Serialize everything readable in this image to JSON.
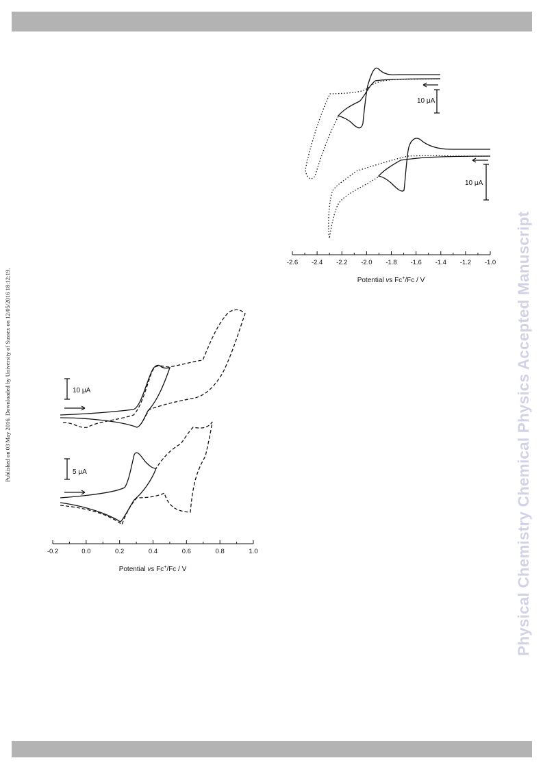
{
  "page": {
    "side_note": "Published on 03 May 2016. Downloaded by University of Sussex on 12/05/2016 18:12:19.",
    "watermark": "Physical Chemistry Chemical Physics Accepted Manuscript"
  },
  "chart_data": [
    {
      "type": "line",
      "title": "",
      "xlabel": "Potential vs Fc+/Fc / V",
      "xlabel_parts": [
        "Potential ",
        "vs",
        " Fc",
        "+",
        "/Fc / V"
      ],
      "ylabel": "",
      "xlim": [
        -2.6,
        -1.0
      ],
      "xticks": [
        "-2.6",
        "-2.4",
        "-2.2",
        "-2.0",
        "-1.8",
        "-1.6",
        "-1.4",
        "-1.2",
        "-1.0"
      ],
      "scale_bars": [
        "10 μA",
        "10 μA"
      ],
      "traces": [
        {
          "name": "",
          "style": "solid",
          "description": "reversible couple near -2.0 V"
        },
        {
          "name": "",
          "style": "dotted",
          "description": "extended scan to -2.5 V"
        },
        {
          "name": "",
          "style": "solid",
          "description": "reversible couple near -1.65 V"
        },
        {
          "name": "",
          "style": "dotted",
          "description": "extended scan to -2.3 V"
        }
      ]
    },
    {
      "type": "line",
      "title": "",
      "xlabel": "Potential vs Fc+/Fc / V",
      "xlabel_parts": [
        "Potential ",
        "vs",
        " Fc",
        "+",
        "/Fc / V"
      ],
      "ylabel": "",
      "xlim": [
        -0.2,
        1.0
      ],
      "xticks": [
        "-0.2",
        "0.0",
        "0.2",
        "0.4",
        "0.6",
        "0.8",
        "1.0"
      ],
      "scale_bars": [
        "10 μA",
        "5 μA"
      ],
      "traces": [
        {
          "name": "",
          "style": "solid",
          "description": "couple near 0.35 V"
        },
        {
          "name": "",
          "style": "dashed",
          "description": "extended scan to 0.95 V"
        },
        {
          "name": "",
          "style": "solid",
          "description": "couple near 0.25 V"
        },
        {
          "name": "",
          "style": "dashed",
          "description": "extended scan to 0.75 V"
        }
      ]
    }
  ]
}
